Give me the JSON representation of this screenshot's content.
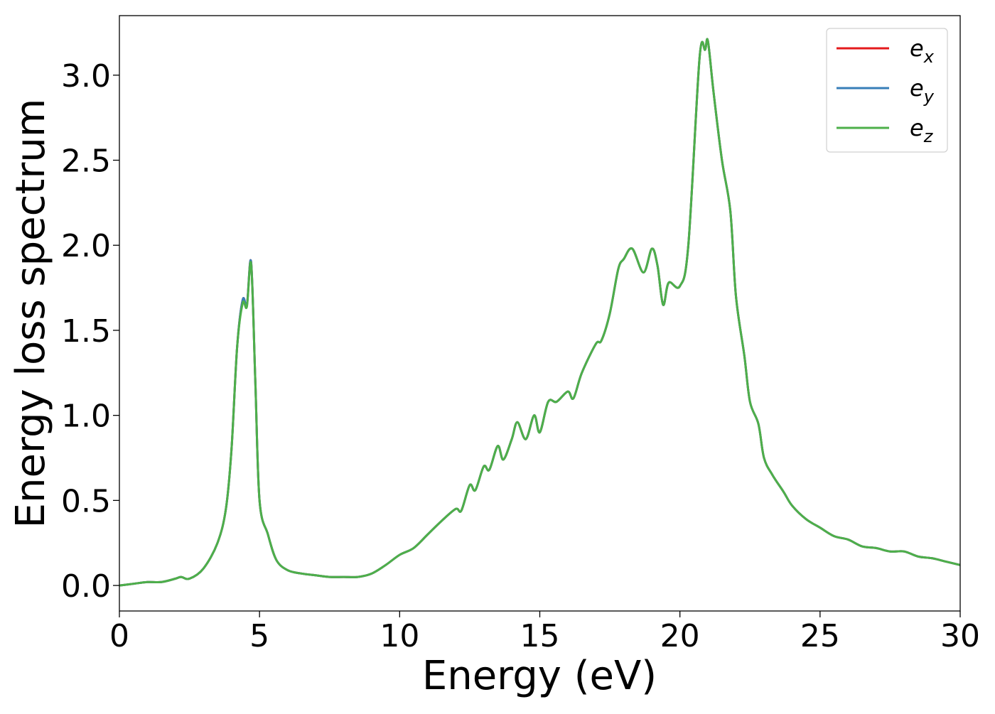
{
  "chart_data": {
    "type": "line",
    "xlabel": "Energy (eV)",
    "ylabel": "Energy loss spectrum",
    "xlim": [
      0,
      30
    ],
    "ylim": [
      -0.15,
      3.35
    ],
    "xticks": [
      0,
      5,
      10,
      15,
      20,
      25,
      30
    ],
    "xtick_labels": [
      "0",
      "5",
      "10",
      "15",
      "20",
      "25",
      "30"
    ],
    "yticks": [
      0.0,
      0.5,
      1.0,
      1.5,
      2.0,
      2.5,
      3.0
    ],
    "ytick_labels": [
      "0.0",
      "0.5",
      "1.0",
      "1.5",
      "2.0",
      "2.5",
      "3.0"
    ],
    "grid": false,
    "legend_position": "top-right",
    "x": [
      0,
      0.5,
      1.0,
      1.5,
      2.0,
      2.2,
      2.5,
      3.0,
      3.5,
      3.8,
      4.0,
      4.2,
      4.4,
      4.55,
      4.7,
      4.85,
      5.0,
      5.3,
      5.6,
      6.0,
      6.5,
      7.0,
      7.5,
      8.0,
      8.5,
      9.0,
      9.5,
      10.0,
      10.5,
      11.0,
      11.5,
      12.0,
      12.2,
      12.5,
      12.7,
      13.0,
      13.2,
      13.5,
      13.7,
      14.0,
      14.2,
      14.5,
      14.8,
      15.0,
      15.3,
      15.6,
      16.0,
      16.2,
      16.5,
      17.0,
      17.2,
      17.5,
      17.8,
      18.0,
      18.3,
      18.7,
      19.0,
      19.2,
      19.4,
      19.6,
      20.0,
      20.3,
      20.7,
      20.9,
      21.0,
      21.2,
      21.5,
      21.8,
      22.0,
      22.3,
      22.5,
      22.8,
      23.0,
      23.3,
      23.7,
      24.0,
      24.5,
      25.0,
      25.5,
      26.0,
      26.5,
      27.0,
      27.5,
      28.0,
      28.5,
      29.0,
      29.5,
      30.0
    ],
    "series": [
      {
        "name": "e_x",
        "color": "#e41a1c",
        "values": [
          0.0,
          0.01,
          0.02,
          0.02,
          0.04,
          0.05,
          0.04,
          0.1,
          0.25,
          0.45,
          0.8,
          1.4,
          1.68,
          1.65,
          1.9,
          1.2,
          0.5,
          0.3,
          0.15,
          0.09,
          0.07,
          0.06,
          0.05,
          0.05,
          0.05,
          0.07,
          0.12,
          0.18,
          0.22,
          0.3,
          0.38,
          0.45,
          0.44,
          0.59,
          0.56,
          0.7,
          0.68,
          0.82,
          0.74,
          0.86,
          0.96,
          0.86,
          1.0,
          0.9,
          1.08,
          1.08,
          1.14,
          1.1,
          1.25,
          1.42,
          1.44,
          1.6,
          1.86,
          1.92,
          1.98,
          1.84,
          1.98,
          1.88,
          1.65,
          1.78,
          1.76,
          2.0,
          3.1,
          3.15,
          3.2,
          2.9,
          2.5,
          2.2,
          1.7,
          1.35,
          1.08,
          0.95,
          0.75,
          0.65,
          0.55,
          0.47,
          0.39,
          0.34,
          0.29,
          0.27,
          0.23,
          0.22,
          0.2,
          0.2,
          0.17,
          0.16,
          0.14,
          0.12
        ]
      },
      {
        "name": "e_y",
        "color": "#377eb8",
        "values": [
          0.0,
          0.01,
          0.02,
          0.02,
          0.04,
          0.05,
          0.04,
          0.1,
          0.25,
          0.45,
          0.8,
          1.4,
          1.68,
          1.65,
          1.9,
          1.2,
          0.5,
          0.3,
          0.15,
          0.09,
          0.07,
          0.06,
          0.05,
          0.05,
          0.05,
          0.07,
          0.12,
          0.18,
          0.22,
          0.3,
          0.38,
          0.45,
          0.44,
          0.59,
          0.56,
          0.7,
          0.68,
          0.82,
          0.74,
          0.86,
          0.96,
          0.86,
          1.0,
          0.9,
          1.08,
          1.08,
          1.14,
          1.1,
          1.25,
          1.42,
          1.44,
          1.6,
          1.86,
          1.92,
          1.98,
          1.84,
          1.98,
          1.88,
          1.65,
          1.78,
          1.76,
          2.0,
          3.1,
          3.15,
          3.2,
          2.9,
          2.5,
          2.2,
          1.7,
          1.35,
          1.08,
          0.95,
          0.75,
          0.65,
          0.55,
          0.47,
          0.39,
          0.34,
          0.29,
          0.27,
          0.23,
          0.22,
          0.2,
          0.2,
          0.17,
          0.16,
          0.14,
          0.12
        ]
      },
      {
        "name": "e_z",
        "color": "#4daf4a",
        "values": [
          0.0,
          0.01,
          0.02,
          0.02,
          0.04,
          0.05,
          0.04,
          0.1,
          0.25,
          0.45,
          0.8,
          1.4,
          1.66,
          1.64,
          1.89,
          1.2,
          0.5,
          0.3,
          0.15,
          0.09,
          0.07,
          0.06,
          0.05,
          0.05,
          0.05,
          0.07,
          0.12,
          0.18,
          0.22,
          0.3,
          0.38,
          0.45,
          0.44,
          0.59,
          0.56,
          0.7,
          0.68,
          0.82,
          0.74,
          0.86,
          0.96,
          0.86,
          1.0,
          0.9,
          1.08,
          1.08,
          1.14,
          1.1,
          1.25,
          1.42,
          1.44,
          1.6,
          1.86,
          1.92,
          1.98,
          1.84,
          1.98,
          1.88,
          1.65,
          1.78,
          1.76,
          2.0,
          3.1,
          3.15,
          3.2,
          2.9,
          2.5,
          2.2,
          1.7,
          1.35,
          1.08,
          0.95,
          0.75,
          0.65,
          0.55,
          0.47,
          0.39,
          0.34,
          0.29,
          0.27,
          0.23,
          0.22,
          0.2,
          0.2,
          0.17,
          0.16,
          0.14,
          0.12
        ]
      }
    ],
    "legend": [
      {
        "base": "e",
        "sub": "x",
        "color": "#e41a1c"
      },
      {
        "base": "e",
        "sub": "y",
        "color": "#377eb8"
      },
      {
        "base": "e",
        "sub": "z",
        "color": "#4daf4a"
      }
    ]
  }
}
